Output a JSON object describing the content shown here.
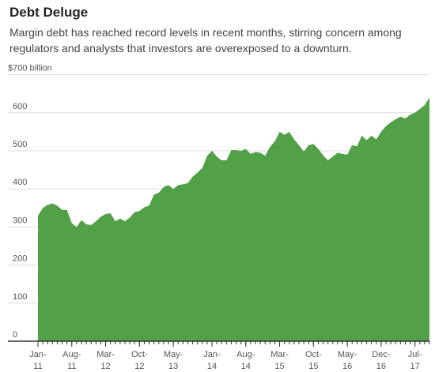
{
  "title": "Debt Deluge",
  "subtitle": "Margin debt has reached record levels in recent months, stirring concern among regulators and analysts that investors are overexposed to a downturn.",
  "colors": {
    "area": "#52a048",
    "grid": "#dcdcdc",
    "axis": "#333333"
  },
  "chart_data": {
    "type": "area",
    "y_top_label": "$700 billion",
    "ylim": [
      0,
      700
    ],
    "yticks": [
      {
        "value": 0,
        "label": "0"
      },
      {
        "value": 100,
        "label": "100"
      },
      {
        "value": 200,
        "label": "200"
      },
      {
        "value": 300,
        "label": "300"
      },
      {
        "value": 400,
        "label": "400"
      },
      {
        "value": 500,
        "label": "500"
      },
      {
        "value": 600,
        "label": "600"
      }
    ],
    "xticks": [
      {
        "date": "Jan-11",
        "line1": "Jan-",
        "line2": "11"
      },
      {
        "date": "Aug-11",
        "line1": "Aug-",
        "line2": "11"
      },
      {
        "date": "Mar-12",
        "line1": "Mar-",
        "line2": "12"
      },
      {
        "date": "Oct-12",
        "line1": "Oct-",
        "line2": "12"
      },
      {
        "date": "May-13",
        "line1": "May-",
        "line2": "13"
      },
      {
        "date": "Jan-14",
        "line1": "Jan-",
        "line2": "14"
      },
      {
        "date": "Aug-14",
        "line1": "Aug-",
        "line2": "14"
      },
      {
        "date": "Mar-15",
        "line1": "Mar-",
        "line2": "15"
      },
      {
        "date": "Oct-15",
        "line1": "Oct-",
        "line2": "15"
      },
      {
        "date": "May-16",
        "line1": "May-",
        "line2": "16"
      },
      {
        "date": "Dec-16",
        "line1": "Dec-",
        "line2": "16"
      },
      {
        "date": "Jul-17",
        "line1": "Jul-",
        "line2": "17"
      }
    ],
    "x": [
      "Jan-11",
      "Feb-11",
      "Mar-11",
      "Apr-11",
      "May-11",
      "Jun-11",
      "Jul-11",
      "Aug-11",
      "Sep-11",
      "Oct-11",
      "Nov-11",
      "Dec-11",
      "Jan-12",
      "Feb-12",
      "Mar-12",
      "Apr-12",
      "May-12",
      "Jun-12",
      "Jul-12",
      "Aug-12",
      "Sep-12",
      "Oct-12",
      "Nov-12",
      "Dec-12",
      "Jan-13",
      "Feb-13",
      "Mar-13",
      "Apr-13",
      "May-13",
      "Jun-13",
      "Jul-13",
      "Aug-13",
      "Sep-13",
      "Oct-13",
      "Nov-13",
      "Dec-13",
      "Jan-14",
      "Feb-14",
      "Mar-14",
      "Apr-14",
      "May-14",
      "Jun-14",
      "Jul-14",
      "Aug-14",
      "Sep-14",
      "Oct-14",
      "Nov-14",
      "Dec-14",
      "Jan-15",
      "Feb-15",
      "Mar-15",
      "Apr-15",
      "May-15",
      "Jun-15",
      "Jul-15",
      "Aug-15",
      "Sep-15",
      "Oct-15",
      "Nov-15",
      "Dec-15",
      "Jan-16",
      "Feb-16",
      "Mar-16",
      "Apr-16",
      "May-16",
      "Jun-16",
      "Jul-16",
      "Aug-16",
      "Sep-16",
      "Oct-16",
      "Nov-16",
      "Dec-16",
      "Jan-17",
      "Feb-17",
      "Mar-17",
      "Apr-17",
      "May-17",
      "Jun-17",
      "Jul-17",
      "Aug-17",
      "Sep-17",
      "Oct-17"
    ],
    "values": [
      330,
      350,
      358,
      362,
      356,
      345,
      345,
      310,
      300,
      318,
      307,
      305,
      315,
      327,
      334,
      336,
      315,
      322,
      315,
      325,
      339,
      342,
      352,
      356,
      385,
      390,
      405,
      410,
      400,
      410,
      412,
      415,
      432,
      443,
      455,
      487,
      500,
      485,
      475,
      475,
      502,
      502,
      500,
      505,
      492,
      497,
      495,
      487,
      510,
      525,
      550,
      542,
      550,
      530,
      515,
      498,
      515,
      518,
      505,
      488,
      475,
      485,
      495,
      492,
      490,
      515,
      512,
      540,
      528,
      540,
      530,
      550,
      565,
      575,
      583,
      590,
      585,
      595,
      600,
      610,
      620,
      640
    ],
    "xlabel": "",
    "ylabel": "",
    "grid": true
  }
}
